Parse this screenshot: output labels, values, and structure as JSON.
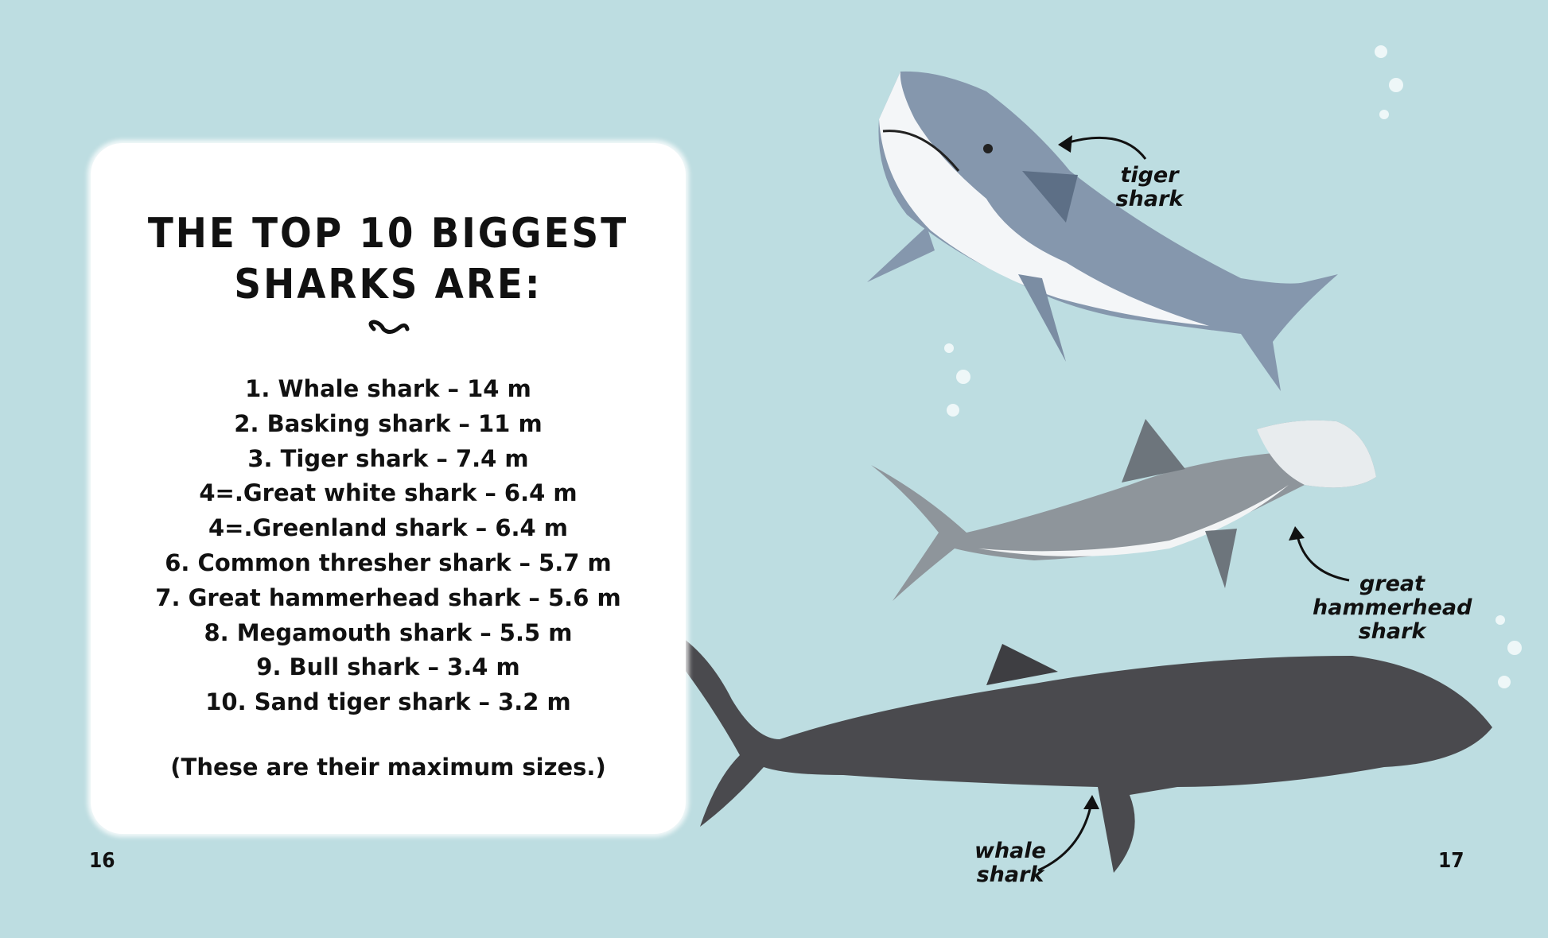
{
  "colors": {
    "background": "#bddde1",
    "card": "#ffffff",
    "text": "#111111",
    "whale_shark": "#4a4a4e",
    "tiger_shark": "#7d8fa6",
    "hammerhead": "#8a9096"
  },
  "heading": {
    "line1": "THE TOP 10 BIGGEST",
    "line2": "SHARKS ARE:"
  },
  "list": [
    "1. Whale shark – 14 m",
    "2. Basking shark – 11 m",
    "3. Tiger shark – 7.4 m",
    "4=.Great white shark – 6.4 m",
    "4=.Greenland shark – 6.4 m",
    "6. Common thresher shark – 5.7 m",
    "7. Great hammerhead shark – 5.6 m",
    "8. Megamouth shark – 5.5 m",
    "9. Bull shark – 3.4 m",
    "10. Sand tiger shark – 3.2 m"
  ],
  "note": "(These are their maximum sizes.)",
  "labels": {
    "tiger": [
      "tiger",
      "shark"
    ],
    "hammerhead": [
      "great",
      "hammerhead",
      "shark"
    ],
    "whale": [
      "whale",
      "shark"
    ]
  },
  "page_numbers": {
    "left": "16",
    "right": "17"
  }
}
